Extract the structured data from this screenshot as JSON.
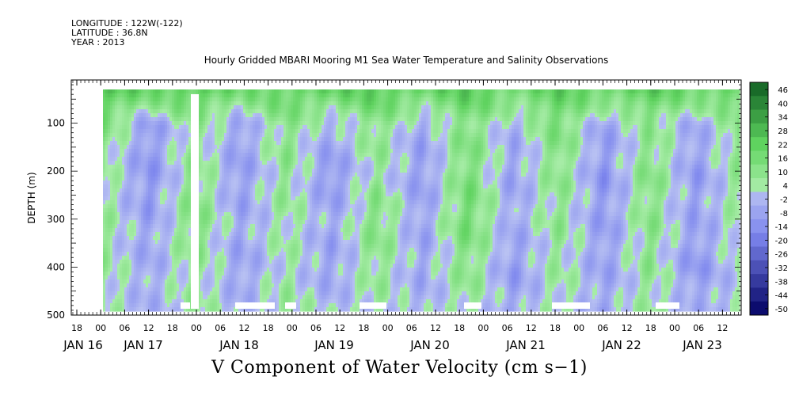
{
  "meta_lines": [
    "LONGITUDE : 122W(-122)",
    "LATITUDE : 36.8N",
    "YEAR : 2013"
  ],
  "title": "Hourly Gridded MBARI Mooring M1 Sea Water Temperature and Salinity Observations",
  "footer": "V Component of Water Velocity (cm s−1)",
  "chart_data": {
    "type": "heatmap",
    "title": "Hourly Gridded MBARI Mooring M1 Sea Water Temperature and Salinity Observations",
    "ylabel": "DEPTH (m)",
    "xlabel": "",
    "y_ticks": [
      100,
      200,
      300,
      400,
      500
    ],
    "ylim": [
      500,
      10
    ],
    "hour_labels": [
      "18",
      "00",
      "06",
      "12",
      "18",
      "00",
      "06",
      "12",
      "18",
      "00",
      "06",
      "12",
      "18",
      "00",
      "06",
      "12",
      "18",
      "00",
      "06",
      "12",
      "18",
      "00",
      "06",
      "12",
      "18",
      "00",
      "06",
      "12"
    ],
    "date_labels": [
      "JAN 16",
      "JAN 17",
      "JAN 18",
      "JAN 19",
      "JAN 20",
      "JAN 21",
      "JAN 22",
      "JAN 23"
    ],
    "colorbar_labels": [
      "46",
      "40",
      "34",
      "28",
      "22",
      "16",
      "10",
      "4",
      "-2",
      "-8",
      "-14",
      "-20",
      "-26",
      "-32",
      "-38",
      "-44",
      "-50"
    ],
    "colors": {
      "pos_light": "#a9eda9",
      "pos_mid": "#5fd35f",
      "pos_dark": "#0d5a20",
      "neg_light": "#b9c2f2",
      "neg_mid": "#7d86ee",
      "neg_dark": "#0c0c6e"
    },
    "series": [
      {
        "name": "",
        "time_hours": [
          0,
          12,
          24,
          36,
          48,
          60,
          72,
          84,
          96,
          108,
          120,
          132,
          144,
          156,
          168
        ],
        "depth_m": [
          20,
          100,
          200,
          300,
          400,
          480
        ],
        "v_cm_s": [
          [
            22,
            10,
            4,
            4,
            4,
            2
          ],
          [
            20,
            -12,
            -14,
            -10,
            -8,
            -6
          ],
          [
            22,
            6,
            8,
            10,
            6,
            4
          ],
          [
            16,
            -10,
            -12,
            -8,
            -10,
            -6
          ],
          [
            18,
            8,
            6,
            4,
            2,
            4
          ],
          [
            20,
            -6,
            -14,
            -8,
            -10,
            -4
          ],
          [
            22,
            8,
            4,
            10,
            6,
            2
          ],
          [
            18,
            -8,
            -12,
            -10,
            -8,
            -6
          ],
          [
            22,
            10,
            12,
            14,
            8,
            4
          ],
          [
            16,
            -6,
            -10,
            -8,
            -12,
            -8
          ],
          [
            20,
            12,
            8,
            6,
            4,
            2
          ],
          [
            18,
            -10,
            -14,
            -12,
            -10,
            -8
          ],
          [
            22,
            6,
            10,
            8,
            6,
            4
          ],
          [
            16,
            -8,
            -12,
            -10,
            -14,
            -6
          ],
          [
            20,
            8,
            6,
            4,
            2,
            -4
          ]
        ]
      }
    ]
  }
}
